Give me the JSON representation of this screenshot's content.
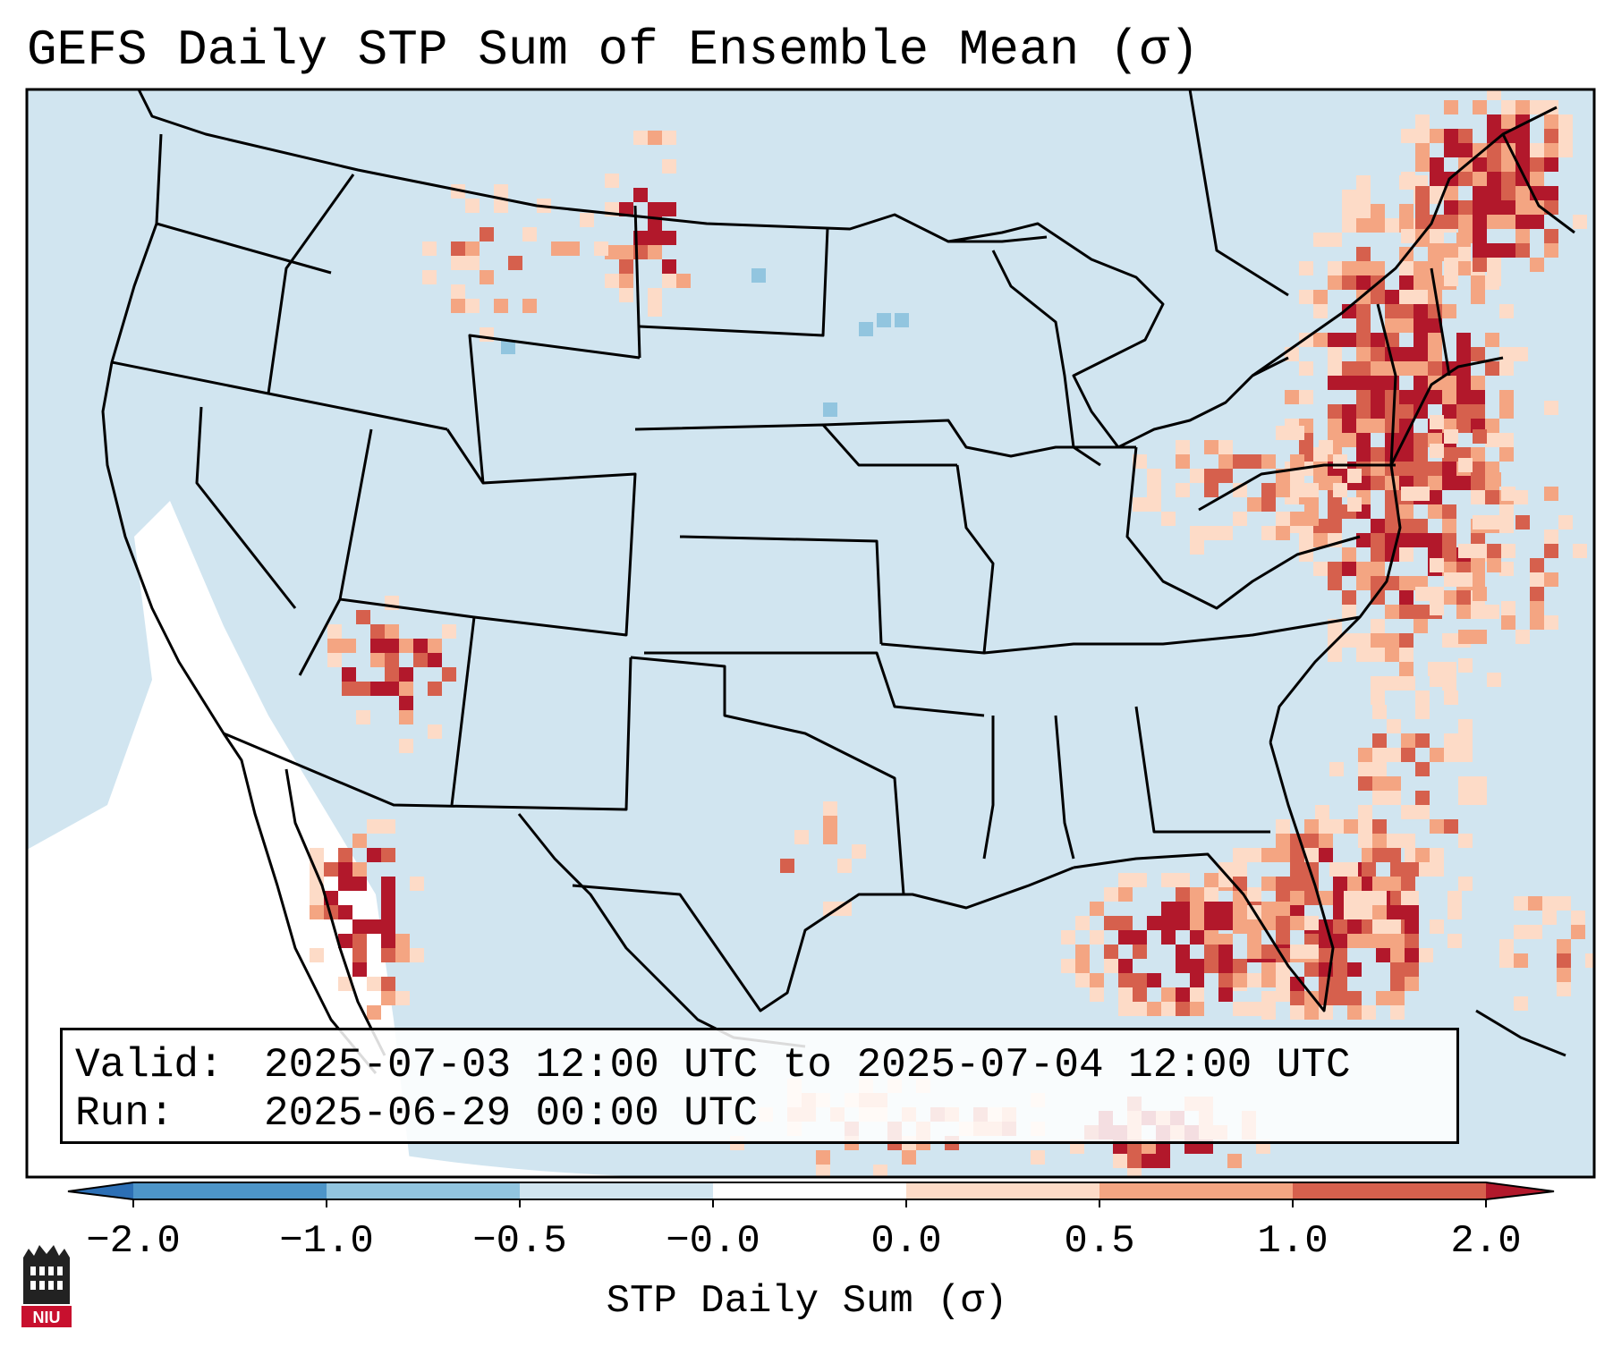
{
  "title": "GEFS Daily STP Sum of Ensemble Mean (σ)",
  "info": {
    "valid_label": "Valid:",
    "valid_value": "2025-07-03 12:00 UTC to 2025-07-04 12:00 UTC",
    "run_label": "Run:",
    "run_value": "2025-06-29 00:00 UTC"
  },
  "colorbar": {
    "label": "STP Daily Sum (σ)",
    "ticks": [
      "−2.0",
      "−1.0",
      "−0.5",
      "−0.0",
      "0.0",
      "0.5",
      "1.0",
      "2.0"
    ],
    "colors": [
      "#2c6fb5",
      "#4d95c8",
      "#92c5df",
      "#d1e5f0",
      "#ffffff",
      "#fddbc7",
      "#f4a582",
      "#d6604d",
      "#b2182b"
    ]
  },
  "colors": {
    "ocean": "#d1e5f0",
    "land": "#d1e5f0",
    "boundary": "#000000",
    "light_red": "#fddbc7",
    "mid_red": "#f4a582",
    "dark_red": "#d6604d",
    "deep_red": "#b2182b",
    "light_blue": "#92c5df",
    "neutral": "#ffffff"
  },
  "logo": {
    "text": "NIU",
    "name": "Northern Illinois University logo"
  }
}
